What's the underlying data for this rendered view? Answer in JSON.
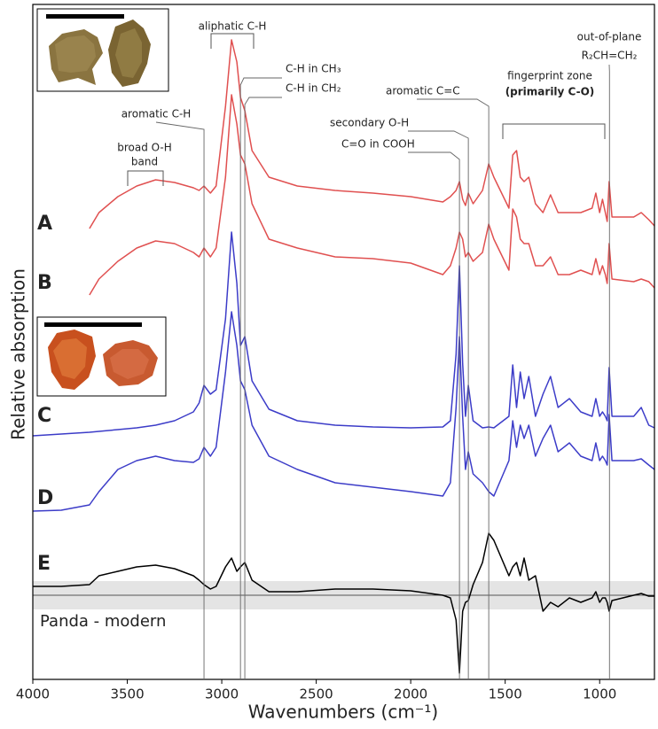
{
  "chart_data": {
    "type": "line",
    "xlabel": "Wavenumbers (cm⁻¹)",
    "ylabel": "Relative absorption",
    "xlim": [
      4000,
      710
    ],
    "ylim": [
      0,
      762
    ],
    "xticks": [
      4000,
      3500,
      3000,
      2500,
      2000,
      1500,
      1000
    ],
    "x": [
      4000,
      3850,
      3700,
      3650,
      3550,
      3450,
      3350,
      3250,
      3150,
      3120,
      3094,
      3060,
      3030,
      2980,
      2948,
      2920,
      2901,
      2878,
      2840,
      2750,
      2600,
      2400,
      2200,
      2000,
      1830,
      1790,
      1760,
      1742,
      1725,
      1710,
      1695,
      1670,
      1620,
      1587,
      1560,
      1480,
      1460,
      1440,
      1420,
      1400,
      1375,
      1340,
      1300,
      1260,
      1220,
      1160,
      1100,
      1040,
      1020,
      1000,
      985,
      970,
      960,
      950,
      935,
      820,
      780,
      740,
      710
    ],
    "series": [
      {
        "name": "A",
        "color": "#e05050",
        "values": [
          null,
          null,
          509,
          527,
          545,
          557,
          564,
          561,
          555,
          552,
          557,
          549,
          557,
          647,
          722,
          697,
          657,
          642,
          597,
          567,
          557,
          552,
          549,
          545,
          539,
          545,
          552,
          562,
          542,
          535,
          549,
          537,
          552,
          582,
          567,
          532,
          592,
          597,
          567,
          562,
          567,
          537,
          527,
          547,
          527,
          527,
          527,
          532,
          549,
          527,
          542,
          527,
          517,
          562,
          522,
          522,
          527,
          519,
          512
        ]
      },
      {
        "name": "B",
        "color": "#e05050",
        "values": [
          null,
          null,
          434,
          452,
          472,
          487,
          495,
          492,
          482,
          477,
          487,
          477,
          487,
          567,
          660,
          627,
          592,
          582,
          537,
          497,
          487,
          477,
          475,
          470,
          457,
          467,
          487,
          505,
          497,
          477,
          482,
          472,
          482,
          514,
          497,
          462,
          531,
          522,
          497,
          492,
          492,
          467,
          467,
          477,
          457,
          457,
          462,
          457,
          475,
          457,
          467,
          457,
          447,
          492,
          452,
          449,
          452,
          449,
          442
        ]
      },
      {
        "name": "C",
        "color": "#3c3cc8",
        "values": [
          275,
          277,
          279,
          280,
          282,
          284,
          287,
          292,
          302,
          312,
          332,
          322,
          327,
          407,
          505,
          447,
          377,
          387,
          337,
          305,
          292,
          287,
          285,
          284,
          285,
          292,
          367,
          467,
          357,
          297,
          332,
          292,
          284,
          285,
          284,
          297,
          355,
          307,
          347,
          317,
          342,
          297,
          322,
          342,
          307,
          317,
          302,
          297,
          317,
          297,
          302,
          297,
          292,
          352,
          297,
          297,
          307,
          287,
          284
        ]
      },
      {
        "name": "D",
        "color": "#3c3cc8",
        "values": [
          190,
          191,
          197,
          212,
          237,
          247,
          252,
          247,
          245,
          249,
          262,
          252,
          262,
          347,
          415,
          377,
          337,
          327,
          287,
          252,
          237,
          222,
          217,
          212,
          207,
          222,
          307,
          387,
          297,
          237,
          257,
          232,
          222,
          212,
          207,
          247,
          292,
          262,
          287,
          272,
          287,
          252,
          272,
          287,
          257,
          267,
          252,
          247,
          267,
          247,
          252,
          247,
          242,
          299,
          247,
          247,
          249,
          242,
          237
        ]
      },
      {
        "name": "E",
        "color": "#000000",
        "values": [
          105,
          105,
          107,
          117,
          122,
          127,
          129,
          125,
          117,
          112,
          107,
          102,
          105,
          127,
          137,
          122,
          127,
          132,
          112,
          99,
          99,
          102,
          102,
          100,
          95,
          92,
          67,
          7,
          77,
          87,
          89,
          107,
          132,
          165,
          157,
          117,
          127,
          132,
          117,
          137,
          112,
          117,
          77,
          87,
          82,
          92,
          87,
          92,
          99,
          87,
          92,
          92,
          87,
          77,
          89,
          95,
          97,
          94,
          94
        ]
      }
    ],
    "reference_band": {
      "range": [
        79,
        111
      ],
      "line": 95,
      "label": "Panda - modern"
    },
    "annotations": [
      {
        "text": "aliphatic C-H"
      },
      {
        "text": "broad O-H"
      },
      {
        "text": "band"
      },
      {
        "text": "aromatic C-H",
        "x": 3094
      },
      {
        "text": "C-H in CH₃",
        "x": 2901
      },
      {
        "text": "C-H in CH₂",
        "x": 2878
      },
      {
        "text": "aromatic C=C",
        "x": 1587
      },
      {
        "text": "secondary O-H",
        "x": 1695
      },
      {
        "text": "C=O in COOH",
        "x": 1742
      },
      {
        "text": "fingerprint zone"
      },
      {
        "text": "(primarily C-O)"
      },
      {
        "text": "out-of-plane"
      },
      {
        "text": "R₂CH=CH₂",
        "x": 948
      }
    ]
  }
}
